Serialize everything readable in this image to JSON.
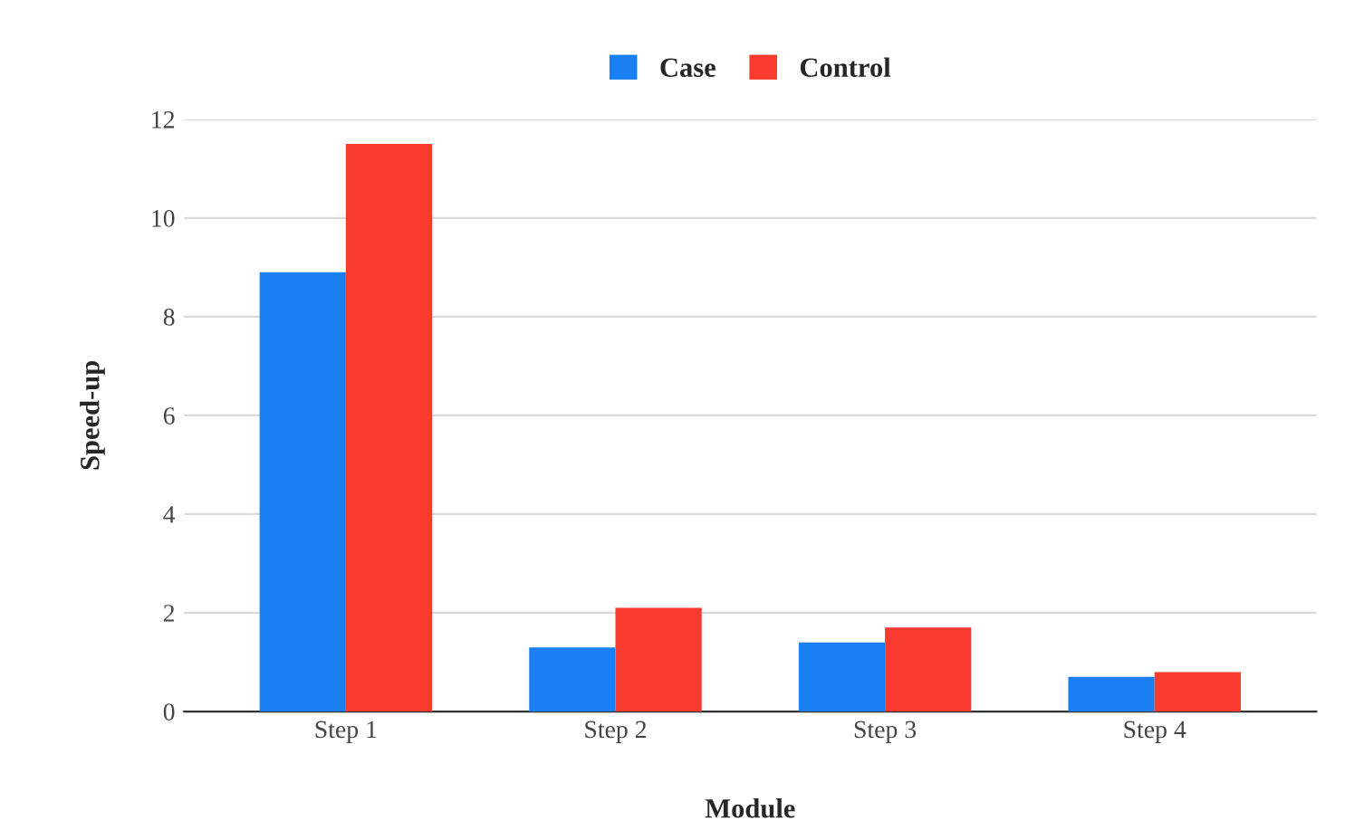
{
  "chart_data": {
    "type": "bar",
    "xlabel": "Module",
    "ylabel": "Speed-up",
    "categories": [
      "Step 1",
      "Step 2",
      "Step 3",
      "Step 4"
    ],
    "series": [
      {
        "name": "Case",
        "color": "#1a7ff0",
        "values": [
          8.9,
          1.3,
          1.4,
          0.7
        ]
      },
      {
        "name": "Control",
        "color": "#f93a2f",
        "values": [
          11.5,
          2.1,
          1.7,
          0.8
        ]
      }
    ],
    "ylim": [
      0,
      12
    ],
    "yticks": [
      0,
      2,
      4,
      6,
      8,
      10,
      12
    ],
    "grid": "y",
    "legend": "top"
  }
}
